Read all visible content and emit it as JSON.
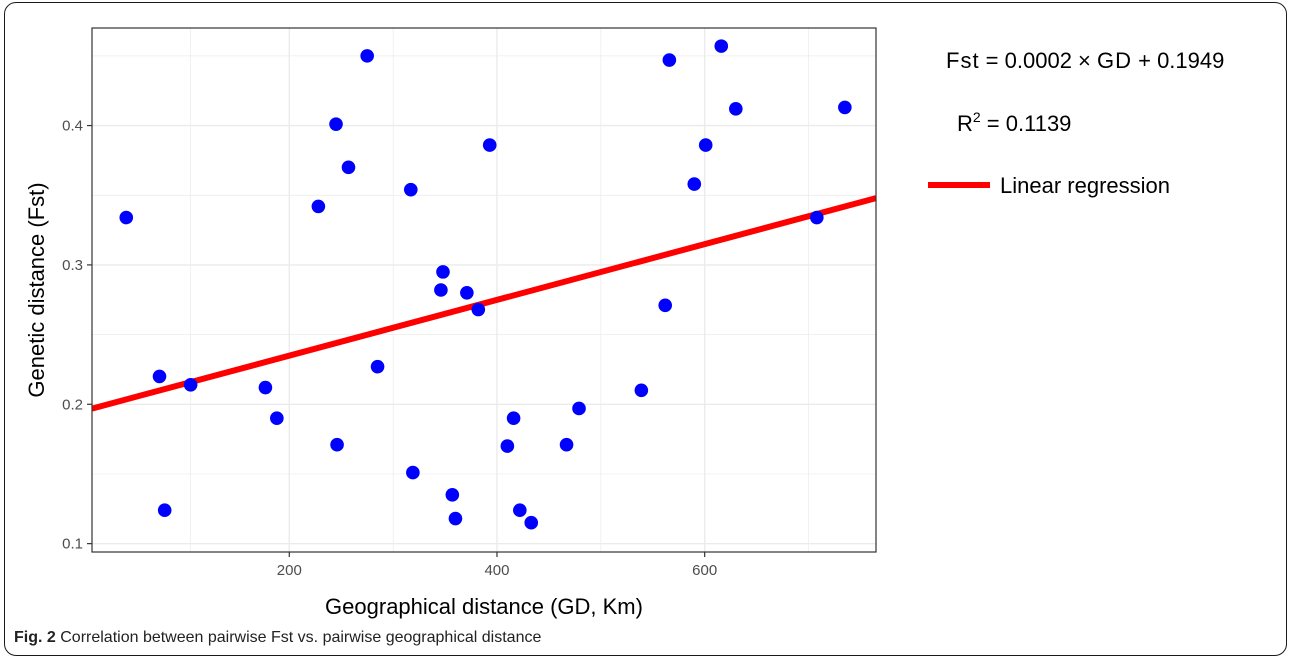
{
  "caption": {
    "label": "Fig. 2",
    "text": "Correlation between pairwise Fst vs. pairwise geographical distance"
  },
  "equation": {
    "fst_label": "Fst",
    "fst_rhs_1": " = 0.0002 × ",
    "gd_label": "GD",
    "fst_rhs_2": " + 0.1949",
    "r_label": "R",
    "r_sup": "2",
    "r_value": " = 0.1139"
  },
  "colors": {
    "points": "#0000ff",
    "regression": "#ff0000",
    "grid": "#ebebeb",
    "panel_border": "#333333"
  },
  "chart_data": {
    "type": "scatter",
    "xlabel": "Geographical distance (GD, Km)",
    "ylabel": "Genetic distance (Fst)",
    "xlim": [
      10,
      765
    ],
    "ylim": [
      0.094,
      0.47
    ],
    "x_ticks": [
      200,
      400,
      600
    ],
    "y_ticks": [
      0.1,
      0.2,
      0.3,
      0.4
    ],
    "y_tick_labels": [
      "0.1",
      "0.2",
      "0.3",
      "0.4"
    ],
    "grid": true,
    "legend": {
      "placement": "right",
      "entries": [
        {
          "label": "Linear regression",
          "marker": "line",
          "color": "#ff0000"
        }
      ]
    },
    "regression": {
      "slope": 0.0002,
      "intercept": 0.1949,
      "r2": 0.1139,
      "x_range": [
        10,
        765
      ]
    },
    "points": [
      {
        "x": 43,
        "y": 0.334
      },
      {
        "x": 75,
        "y": 0.22
      },
      {
        "x": 80,
        "y": 0.124
      },
      {
        "x": 105,
        "y": 0.214
      },
      {
        "x": 177,
        "y": 0.212
      },
      {
        "x": 188,
        "y": 0.19
      },
      {
        "x": 228,
        "y": 0.342
      },
      {
        "x": 245,
        "y": 0.401
      },
      {
        "x": 246,
        "y": 0.171
      },
      {
        "x": 257,
        "y": 0.37
      },
      {
        "x": 275,
        "y": 0.45
      },
      {
        "x": 285,
        "y": 0.227
      },
      {
        "x": 317,
        "y": 0.354
      },
      {
        "x": 319,
        "y": 0.151
      },
      {
        "x": 346,
        "y": 0.282
      },
      {
        "x": 348,
        "y": 0.295
      },
      {
        "x": 357,
        "y": 0.135
      },
      {
        "x": 360,
        "y": 0.118
      },
      {
        "x": 371,
        "y": 0.28
      },
      {
        "x": 382,
        "y": 0.268
      },
      {
        "x": 393,
        "y": 0.386
      },
      {
        "x": 410,
        "y": 0.17
      },
      {
        "x": 416,
        "y": 0.19
      },
      {
        "x": 422,
        "y": 0.124
      },
      {
        "x": 433,
        "y": 0.115
      },
      {
        "x": 467,
        "y": 0.171
      },
      {
        "x": 479,
        "y": 0.197
      },
      {
        "x": 539,
        "y": 0.21
      },
      {
        "x": 562,
        "y": 0.271
      },
      {
        "x": 566,
        "y": 0.447
      },
      {
        "x": 590,
        "y": 0.358
      },
      {
        "x": 601,
        "y": 0.386
      },
      {
        "x": 616,
        "y": 0.457
      },
      {
        "x": 630,
        "y": 0.412
      },
      {
        "x": 708,
        "y": 0.334
      },
      {
        "x": 735,
        "y": 0.413
      }
    ]
  }
}
